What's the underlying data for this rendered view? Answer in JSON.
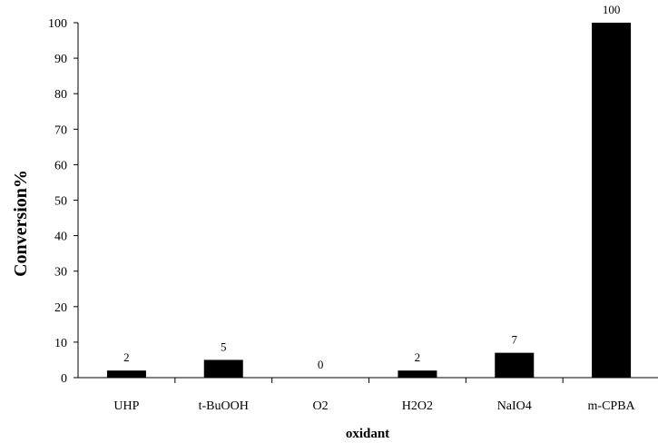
{
  "chart_data": {
    "type": "bar",
    "categories": [
      "UHP",
      "t-BuOOH",
      "O2",
      "H2O2",
      "NaIO4",
      "m-CPBA"
    ],
    "values": [
      2,
      5,
      0,
      2,
      7,
      100
    ],
    "data_labels": [
      "2",
      "5",
      "0",
      "2",
      "7",
      "100"
    ],
    "title": "",
    "xlabel": "oxidant",
    "ylabel": "Conversion%",
    "ylim": [
      0,
      100
    ],
    "yticks": [
      "0",
      "10",
      "20",
      "30",
      "40",
      "50",
      "60",
      "70",
      "80",
      "90",
      "100"
    ],
    "grid": false,
    "legend": "none",
    "bar_color": "#000000"
  }
}
